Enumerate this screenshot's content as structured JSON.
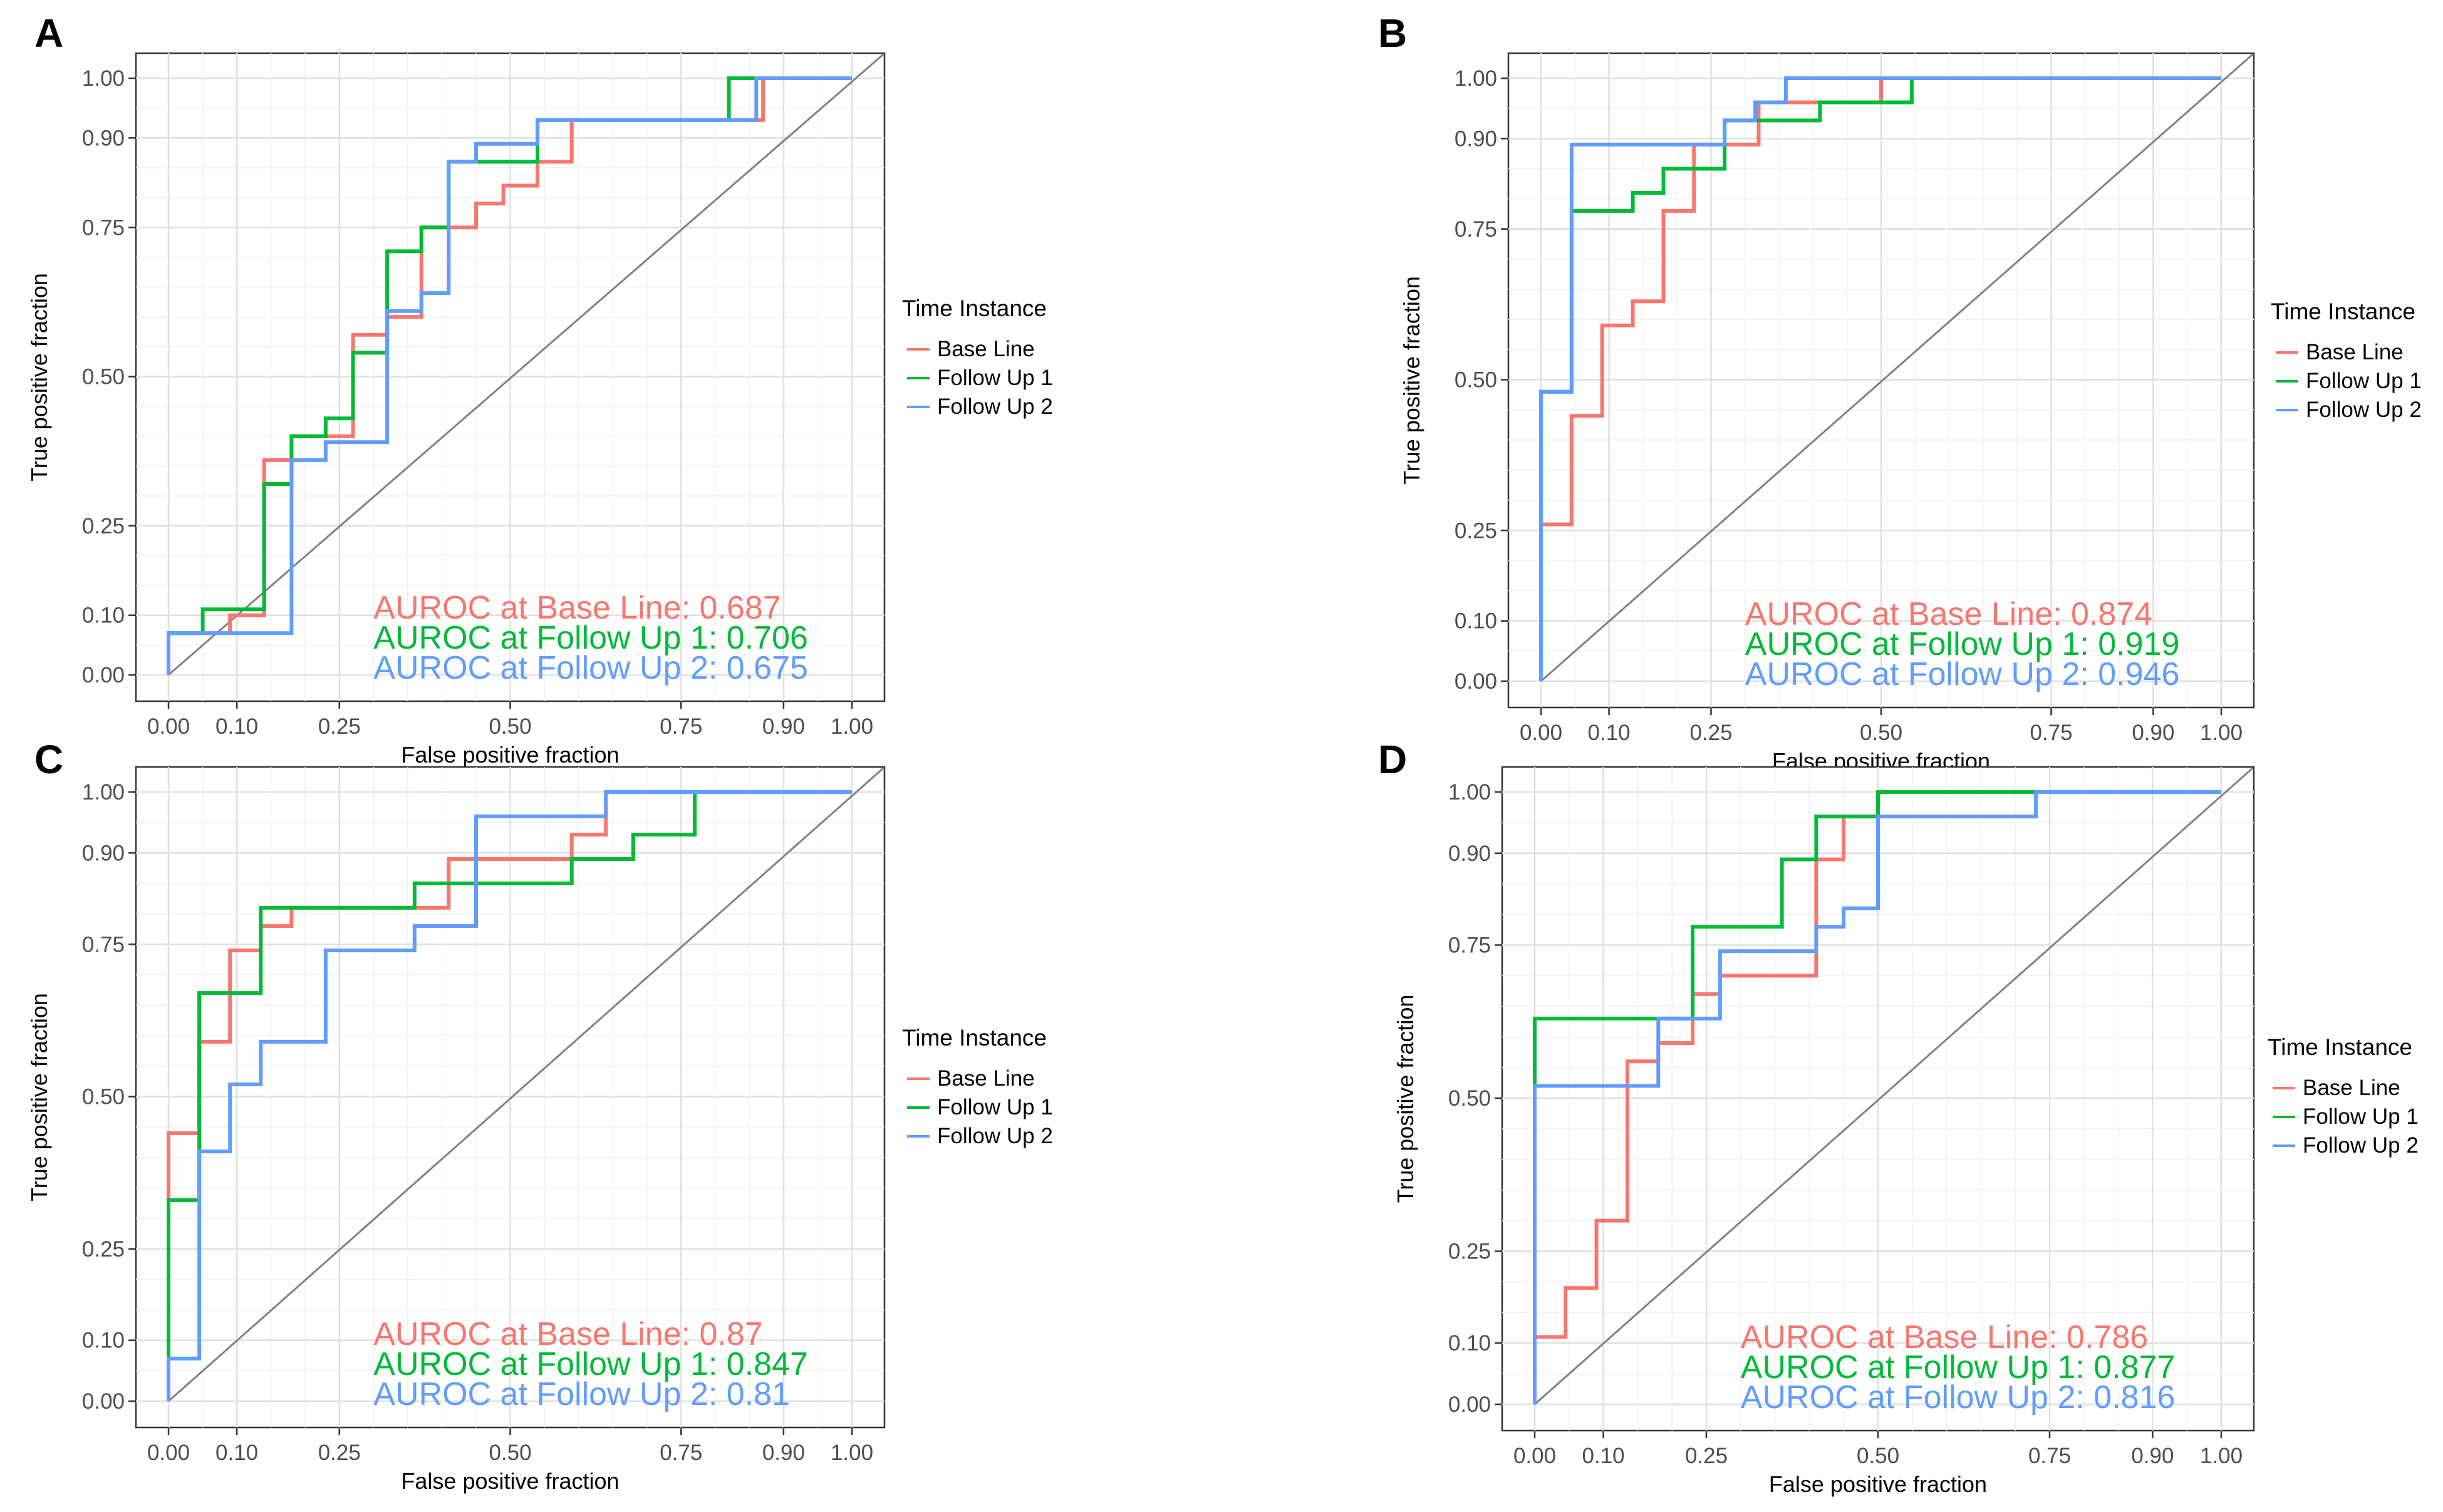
{
  "chart_data": [
    {
      "panel_label": "A",
      "type": "line",
      "xlabel": "False positive fraction",
      "ylabel": "True positive fraction",
      "x_ticks": [
        "0.00",
        "0.10",
        "0.25",
        "0.50",
        "0.75",
        "0.90",
        "1.00"
      ],
      "y_ticks": [
        "0.00",
        "0.10",
        "0.25",
        "0.50",
        "0.75",
        "0.90",
        "1.00"
      ],
      "xlim": [
        0,
        1
      ],
      "ylim": [
        0,
        1
      ],
      "legend_title": "Time Instance",
      "legend_position": "right",
      "series": [
        {
          "name": "Base Line",
          "color": "#F8766D",
          "auroc_label": "AUROC at Base Line: 0.687",
          "x": [
            0,
            0,
            0.09,
            0.09,
            0.14,
            0.14,
            0.18,
            0.18,
            0.27,
            0.27,
            0.32,
            0.32,
            0.37,
            0.37,
            0.45,
            0.45,
            0.49,
            0.49,
            0.54,
            0.54,
            0.59,
            0.59,
            0.87,
            0.87,
            1
          ],
          "y": [
            0,
            0.07,
            0.07,
            0.1,
            0.1,
            0.36,
            0.36,
            0.4,
            0.4,
            0.57,
            0.57,
            0.6,
            0.6,
            0.75,
            0.75,
            0.79,
            0.79,
            0.82,
            0.82,
            0.86,
            0.86,
            0.93,
            0.93,
            1,
            1
          ]
        },
        {
          "name": "Follow Up 1",
          "color": "#00BA38",
          "auroc_label": "AUROC at Follow Up 1: 0.706",
          "x": [
            0,
            0,
            0.05,
            0.05,
            0.14,
            0.14,
            0.18,
            0.18,
            0.23,
            0.23,
            0.27,
            0.27,
            0.32,
            0.32,
            0.37,
            0.37,
            0.41,
            0.41,
            0.54,
            0.54,
            0.82,
            0.82,
            1
          ],
          "y": [
            0,
            0.07,
            0.07,
            0.11,
            0.11,
            0.32,
            0.32,
            0.4,
            0.4,
            0.43,
            0.43,
            0.54,
            0.54,
            0.71,
            0.71,
            0.75,
            0.75,
            0.86,
            0.86,
            0.93,
            0.93,
            1,
            1
          ]
        },
        {
          "name": "Follow Up 2",
          "color": "#619CFF",
          "auroc_label": "AUROC at Follow Up 2: 0.675",
          "x": [
            0,
            0,
            0.18,
            0.18,
            0.23,
            0.23,
            0.32,
            0.32,
            0.37,
            0.37,
            0.41,
            0.41,
            0.45,
            0.45,
            0.54,
            0.54,
            0.86,
            0.86,
            1
          ],
          "y": [
            0,
            0.07,
            0.07,
            0.36,
            0.36,
            0.39,
            0.39,
            0.61,
            0.61,
            0.64,
            0.64,
            0.86,
            0.86,
            0.89,
            0.89,
            0.93,
            0.93,
            1,
            1
          ]
        }
      ]
    },
    {
      "panel_label": "B",
      "type": "line",
      "xlabel": "False positive fraction",
      "ylabel": "True positive fraction",
      "x_ticks": [
        "0.00",
        "0.10",
        "0.25",
        "0.50",
        "0.75",
        "0.90",
        "1.00"
      ],
      "y_ticks": [
        "0.00",
        "0.10",
        "0.25",
        "0.50",
        "0.75",
        "0.90",
        "1.00"
      ],
      "xlim": [
        0,
        1
      ],
      "ylim": [
        0,
        1
      ],
      "legend_title": "Time Instance",
      "legend_position": "right",
      "series": [
        {
          "name": "Base Line",
          "color": "#F8766D",
          "auroc_label": "AUROC at Base Line: 0.874",
          "x": [
            0,
            0,
            0.045,
            0.045,
            0.09,
            0.09,
            0.135,
            0.135,
            0.18,
            0.18,
            0.225,
            0.225,
            0.32,
            0.32,
            0.5,
            0.5,
            1
          ],
          "y": [
            0,
            0.26,
            0.26,
            0.44,
            0.44,
            0.59,
            0.59,
            0.63,
            0.63,
            0.78,
            0.78,
            0.89,
            0.89,
            0.96,
            0.96,
            1,
            1
          ]
        },
        {
          "name": "Follow Up 1",
          "color": "#00BA38",
          "auroc_label": "AUROC at Follow Up 1: 0.919",
          "x": [
            0,
            0,
            0.045,
            0.045,
            0.135,
            0.135,
            0.18,
            0.18,
            0.27,
            0.27,
            0.41,
            0.41,
            0.545,
            0.545,
            1
          ],
          "y": [
            0,
            0.48,
            0.48,
            0.78,
            0.78,
            0.81,
            0.81,
            0.85,
            0.85,
            0.93,
            0.93,
            0.96,
            0.96,
            1,
            1
          ]
        },
        {
          "name": "Follow Up 2",
          "color": "#619CFF",
          "auroc_label": "AUROC at Follow Up 2: 0.946",
          "x": [
            0,
            0,
            0.045,
            0.045,
            0.27,
            0.27,
            0.315,
            0.315,
            0.36,
            0.36,
            1
          ],
          "y": [
            0,
            0.48,
            0.48,
            0.89,
            0.89,
            0.93,
            0.93,
            0.96,
            0.96,
            1,
            1
          ]
        }
      ]
    },
    {
      "panel_label": "C",
      "type": "line",
      "xlabel": "False positive fraction",
      "ylabel": "True positive fraction",
      "x_ticks": [
        "0.00",
        "0.10",
        "0.25",
        "0.50",
        "0.75",
        "0.90",
        "1.00"
      ],
      "y_ticks": [
        "0.00",
        "0.10",
        "0.25",
        "0.50",
        "0.75",
        "0.90",
        "1.00"
      ],
      "xlim": [
        0,
        1
      ],
      "ylim": [
        0,
        1
      ],
      "legend_title": "Time Instance",
      "legend_position": "right",
      "series": [
        {
          "name": "Base Line",
          "color": "#F8766D",
          "auroc_label": "AUROC at Base Line: 0.87",
          "x": [
            0,
            0,
            0.045,
            0.045,
            0.09,
            0.09,
            0.135,
            0.135,
            0.18,
            0.18,
            0.41,
            0.41,
            0.59,
            0.59,
            0.64,
            0.64,
            1
          ],
          "y": [
            0,
            0.44,
            0.44,
            0.59,
            0.59,
            0.74,
            0.74,
            0.78,
            0.78,
            0.81,
            0.81,
            0.89,
            0.89,
            0.93,
            0.93,
            1,
            1
          ]
        },
        {
          "name": "Follow Up 1",
          "color": "#00BA38",
          "auroc_label": "AUROC at Follow Up 1: 0.847",
          "x": [
            0,
            0,
            0.045,
            0.045,
            0.135,
            0.135,
            0.36,
            0.36,
            0.59,
            0.59,
            0.68,
            0.68,
            0.77,
            0.77,
            1
          ],
          "y": [
            0,
            0.33,
            0.33,
            0.67,
            0.67,
            0.81,
            0.81,
            0.85,
            0.85,
            0.89,
            0.89,
            0.93,
            0.93,
            1,
            1
          ]
        },
        {
          "name": "Follow Up 2",
          "color": "#619CFF",
          "auroc_label": "AUROC at Follow Up 2: 0.81",
          "x": [
            0,
            0,
            0.045,
            0.045,
            0.09,
            0.09,
            0.135,
            0.135,
            0.23,
            0.23,
            0.36,
            0.36,
            0.45,
            0.45,
            0.64,
            0.64,
            1
          ],
          "y": [
            0,
            0.07,
            0.07,
            0.41,
            0.41,
            0.52,
            0.52,
            0.59,
            0.59,
            0.74,
            0.74,
            0.78,
            0.78,
            0.96,
            0.96,
            1,
            1
          ]
        }
      ]
    },
    {
      "panel_label": "D",
      "type": "line",
      "xlabel": "False positive fraction",
      "ylabel": "True positive fraction",
      "x_ticks": [
        "0.00",
        "0.10",
        "0.25",
        "0.50",
        "0.75",
        "0.90",
        "1.00"
      ],
      "y_ticks": [
        "0.00",
        "0.10",
        "0.25",
        "0.50",
        "0.75",
        "0.90",
        "1.00"
      ],
      "xlim": [
        0,
        1
      ],
      "ylim": [
        0,
        1
      ],
      "legend_title": "Time Instance",
      "legend_position": "right",
      "series": [
        {
          "name": "Base Line",
          "color": "#F8766D",
          "auroc_label": "AUROC at Base Line: 0.786",
          "x": [
            0,
            0,
            0.045,
            0.045,
            0.09,
            0.09,
            0.135,
            0.135,
            0.18,
            0.18,
            0.23,
            0.23,
            0.27,
            0.27,
            0.41,
            0.41,
            0.45,
            0.45,
            0.5,
            0.5,
            1
          ],
          "y": [
            0,
            0.11,
            0.11,
            0.19,
            0.19,
            0.3,
            0.3,
            0.56,
            0.56,
            0.59,
            0.59,
            0.67,
            0.67,
            0.7,
            0.7,
            0.89,
            0.89,
            0.96,
            0.96,
            1,
            1
          ]
        },
        {
          "name": "Follow Up 1",
          "color": "#00BA38",
          "auroc_label": "AUROC at Follow Up 1: 0.877",
          "x": [
            0,
            0,
            0.23,
            0.23,
            0.36,
            0.36,
            0.41,
            0.41,
            0.5,
            0.5,
            1
          ],
          "y": [
            0,
            0.63,
            0.63,
            0.78,
            0.78,
            0.89,
            0.89,
            0.96,
            0.96,
            1,
            1
          ]
        },
        {
          "name": "Follow Up 2",
          "color": "#619CFF",
          "auroc_label": "AUROC at Follow Up 2: 0.816",
          "x": [
            0,
            0,
            0.18,
            0.18,
            0.27,
            0.27,
            0.41,
            0.41,
            0.45,
            0.45,
            0.5,
            0.5,
            0.73,
            0.73,
            1
          ],
          "y": [
            0,
            0.52,
            0.52,
            0.63,
            0.63,
            0.74,
            0.74,
            0.78,
            0.78,
            0.81,
            0.81,
            0.96,
            0.96,
            1,
            1
          ]
        }
      ]
    }
  ]
}
